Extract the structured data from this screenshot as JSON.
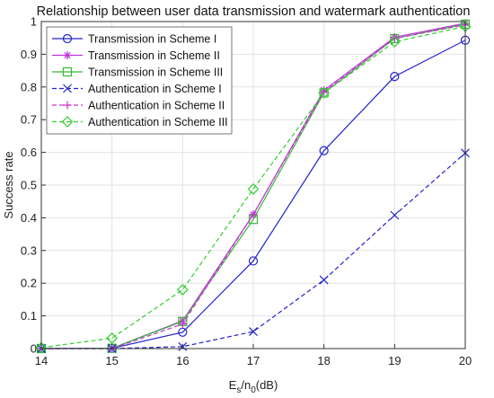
{
  "chart_data": {
    "type": "line",
    "title": "Relationship between user data transmission and watermark authentication",
    "xlabel_parts": {
      "base": "E",
      "sub1": "s",
      "mid": "/n",
      "sub2": "0",
      "tail": "(dB)"
    },
    "ylabel": "Success rate",
    "x": [
      14,
      15,
      16,
      17,
      18,
      19,
      20
    ],
    "xlim": [
      14,
      20
    ],
    "ylim": [
      0,
      1
    ],
    "xticks": [
      "14",
      "15",
      "16",
      "17",
      "18",
      "19",
      "20"
    ],
    "yticks": [
      "0",
      "0.1",
      "0.2",
      "0.3",
      "0.4",
      "0.5",
      "0.6",
      "0.7",
      "0.8",
      "0.9",
      "1"
    ],
    "grid": true,
    "legend_position": "top-left",
    "series": [
      {
        "name": "Transmission in Scheme I",
        "values": [
          0.0,
          0.001,
          0.05,
          0.268,
          0.605,
          0.832,
          0.943
        ],
        "color": "#2222cc",
        "dash": "solid",
        "marker": "circle"
      },
      {
        "name": "Transmission in Scheme II",
        "values": [
          0.0,
          0.001,
          0.085,
          0.41,
          0.79,
          0.952,
          0.995
        ],
        "color": "#bb33dd",
        "dash": "solid",
        "marker": "asterisk"
      },
      {
        "name": "Transmission in Scheme III",
        "values": [
          0.0,
          0.001,
          0.083,
          0.395,
          0.782,
          0.948,
          0.992
        ],
        "color": "#33bb33",
        "dash": "solid",
        "marker": "square"
      },
      {
        "name": "Authentication in Scheme I",
        "values": [
          0.0,
          0.0,
          0.006,
          0.052,
          0.21,
          0.408,
          0.598
        ],
        "color": "#2222cc",
        "dash": "dashed",
        "marker": "x"
      },
      {
        "name": "Authentication in Scheme II",
        "values": [
          0.0,
          0.0,
          0.075,
          0.41,
          0.785,
          0.948,
          0.99
        ],
        "color": "#cc33cc",
        "dash": "dashed",
        "marker": "plus"
      },
      {
        "name": "Authentication in Scheme III",
        "values": [
          0.003,
          0.032,
          0.18,
          0.488,
          0.782,
          0.938,
          0.985
        ],
        "color": "#33cc33",
        "dash": "dashed",
        "marker": "diamond"
      }
    ]
  }
}
